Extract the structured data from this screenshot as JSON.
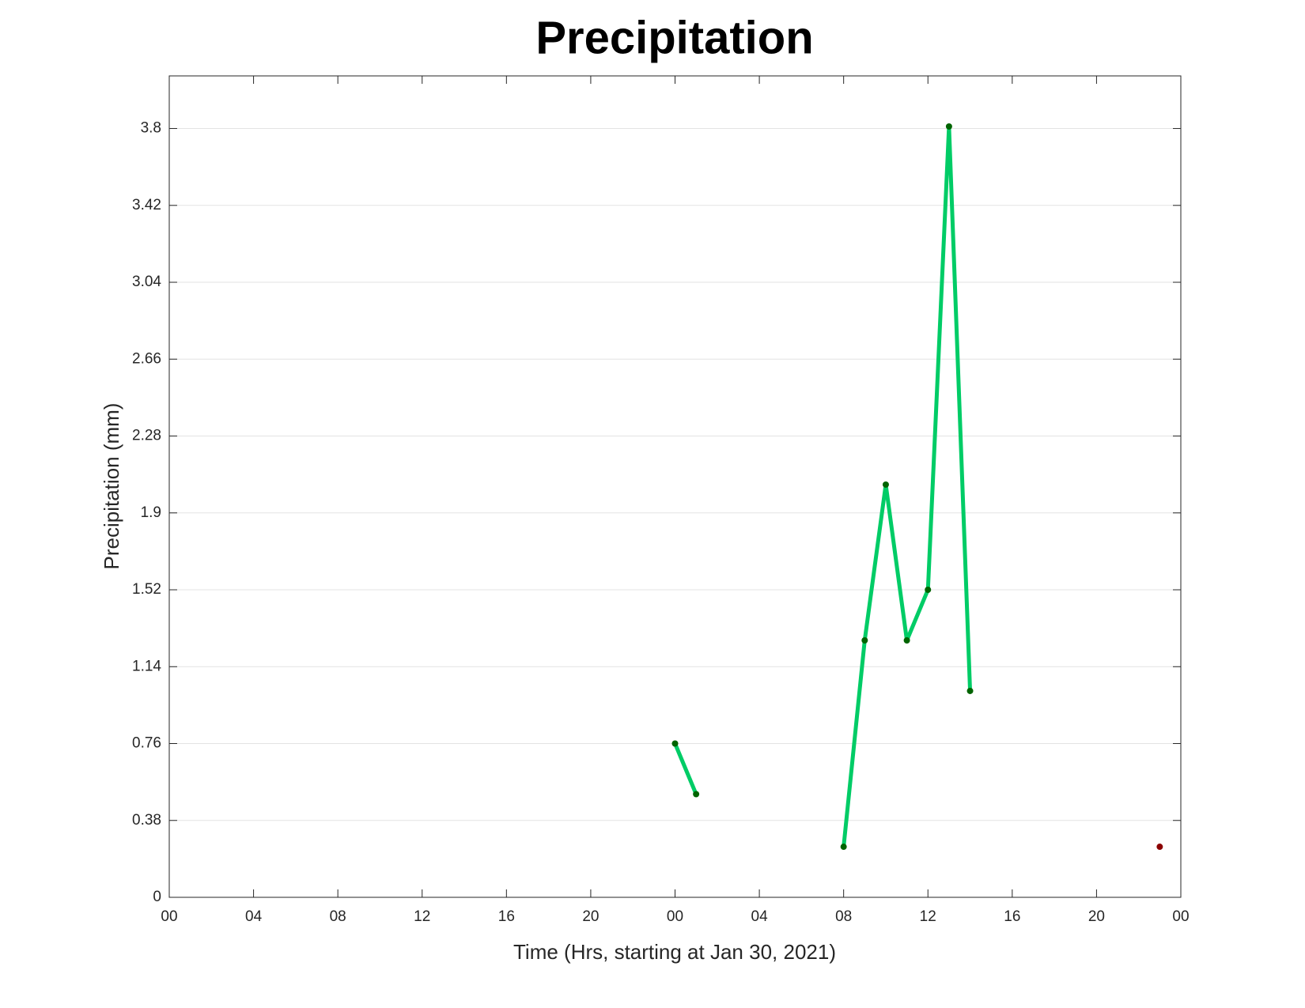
{
  "chart_data": {
    "type": "line",
    "title": "Precipitation",
    "x_label": "Time (Hrs, starting at Jan 30, 2021)",
    "y_label": "Precipitation (mm)",
    "x": [
      24,
      25,
      26,
      27,
      28,
      29,
      30,
      31,
      32,
      33,
      34,
      35,
      36,
      37,
      38,
      39,
      40,
      41,
      42,
      43,
      44,
      45,
      46,
      47
    ],
    "series": [
      {
        "color": "#00cc66",
        "values": [
          0.76,
          0.51,
          null,
          null,
          null,
          null,
          null,
          null,
          0.25,
          1.27,
          2.04,
          1.27,
          1.52,
          3.81,
          1.02,
          null,
          null,
          null,
          null,
          null,
          null,
          null,
          null,
          0.25
        ],
        "marker_colors": [
          "#006400",
          "#006400",
          "#006400",
          "#006400",
          "#006400",
          "#006400",
          "#006400",
          "#006400",
          "#006400",
          "#006400",
          "#006400",
          "#006400",
          "#006400",
          "#006400",
          "#006400",
          "#006400",
          "#006400",
          "#006400",
          "#006400",
          "#006400",
          "#006400",
          "#006400",
          "#006400",
          "#8b0000"
        ]
      }
    ],
    "xlim": [
      0,
      48
    ],
    "xticks": [
      {
        "value": 0,
        "label": "00"
      },
      {
        "value": 4,
        "label": "04"
      },
      {
        "value": 8,
        "label": "08"
      },
      {
        "value": 12,
        "label": "12"
      },
      {
        "value": 16,
        "label": "16"
      },
      {
        "value": 20,
        "label": "20"
      },
      {
        "value": 24,
        "label": "00"
      },
      {
        "value": 28,
        "label": "04"
      },
      {
        "value": 32,
        "label": "08"
      },
      {
        "value": 36,
        "label": "12"
      },
      {
        "value": 40,
        "label": "16"
      },
      {
        "value": 44,
        "label": "20"
      },
      {
        "value": 48,
        "label": "00"
      }
    ],
    "ylim": [
      0,
      4.06
    ],
    "yticks": [
      0,
      0.38,
      0.76,
      1.14,
      1.52,
      1.9,
      2.28,
      2.66,
      3.04,
      3.42,
      3.8
    ],
    "grid": true
  }
}
